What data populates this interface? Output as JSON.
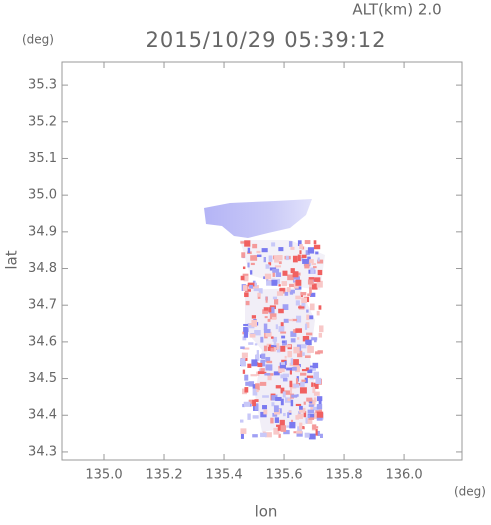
{
  "chart_data": {
    "type": "heatmap",
    "title": "2015/10/29 05:39:12",
    "annotation": "ALT(km) 2.0",
    "y_unit": "(deg)",
    "x_unit": "(deg)",
    "xlabel": "lon",
    "ylabel": "lat",
    "xlim": [
      134.86,
      136.193
    ],
    "ylim": [
      34.278,
      35.363
    ],
    "xticks": [
      {
        "value": 135,
        "label": "135.0"
      },
      135.2,
      135.4,
      135.6,
      135.8,
      {
        "value": 136,
        "label": "136.0"
      }
    ],
    "yticks": [
      34.3,
      34.4,
      34.5,
      34.6,
      34.7,
      34.8,
      34.9,
      {
        "value": 35,
        "label": "35.0"
      },
      35.1,
      35.2,
      35.3
    ]
  }
}
